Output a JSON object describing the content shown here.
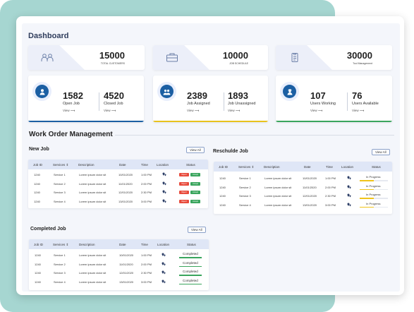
{
  "dashboard": {
    "title": "Dashboard"
  },
  "stats": [
    {
      "value": "15000",
      "label": "TOTAL CUSTOMERS",
      "icon": "users-icon"
    },
    {
      "value": "10000",
      "label": "JOB SCHEDULE",
      "icon": "briefcase-icon"
    },
    {
      "value": "30000",
      "label": "Tool Management",
      "icon": "clipboard-icon"
    }
  ],
  "metric_cards": [
    {
      "icon": "person-icon",
      "accent": "#1b5fa3",
      "left": {
        "value": "1582",
        "label": "Open Job",
        "view": "View ⟶"
      },
      "right": {
        "value": "4520",
        "label": "Closed Job",
        "view": "View ⟶"
      }
    },
    {
      "icon": "group-icon",
      "accent": "#e8c21d",
      "left": {
        "value": "2389",
        "label": "Job Assigned",
        "view": "View ⟶"
      },
      "right": {
        "value": "1893",
        "label": "Job Unassigned",
        "view": "View ⟶"
      }
    },
    {
      "icon": "worker-icon",
      "accent": "#3aa55d",
      "left": {
        "value": "107",
        "label": "Users Working",
        "view": "View ⟶"
      },
      "right": {
        "value": "76",
        "label": "Users Available",
        "view": "View ⟶"
      }
    }
  ],
  "work_order": {
    "title": "Work Order Management"
  },
  "new_job": {
    "title": "New Job",
    "view_all": "View All",
    "columns": [
      "Job ID",
      "Services ⇕",
      "Description",
      "Date",
      "Time",
      "Location",
      "Status"
    ],
    "rows": [
      {
        "id": "1240",
        "service": "Service 1",
        "desc": "Lorem ipsum dolor sit",
        "date": "10/01/2020",
        "time": "1:00 PM",
        "reject": "Reject",
        "accept": "Accept"
      },
      {
        "id": "1240",
        "service": "Service 2",
        "desc": "Lorem ipsum dolor sit",
        "date": "11/01/2020",
        "time": "2:00 PM",
        "reject": "Reject",
        "accept": "Accept"
      },
      {
        "id": "1240",
        "service": "Service 3",
        "desc": "Lorem ipsum dolor sit",
        "date": "12/01/2020",
        "time": "2:30 PM",
        "reject": "Reject",
        "accept": "Accept"
      },
      {
        "id": "1240",
        "service": "Service 4",
        "desc": "Lorem ipsum dolor sit",
        "date": "13/01/2020",
        "time": "3:00 PM",
        "reject": "Reject",
        "accept": "Accept"
      }
    ]
  },
  "reschedule_job": {
    "title": "Reschulde Job",
    "view_all": "View All",
    "columns": [
      "Job ID",
      "Services ⇕",
      "Description",
      "Date",
      "Time",
      "Location",
      "Status"
    ],
    "rows": [
      {
        "id": "1240",
        "service": "Service 1",
        "desc": "Lorem ipsum dolor sit",
        "date": "10/01/2020",
        "time": "1:00 PM",
        "status": "In Progress",
        "progress": 0.5
      },
      {
        "id": "1240",
        "service": "Service 2",
        "desc": "Lorem ipsum dolor sit",
        "date": "11/01/2020",
        "time": "2:00 PM",
        "status": "In Progress",
        "progress": 0.5
      },
      {
        "id": "1240",
        "service": "Service 3",
        "desc": "Lorem ipsum dolor sit",
        "date": "12/01/2020",
        "time": "2:30 PM",
        "status": "In Progress",
        "progress": 0.5
      },
      {
        "id": "1240",
        "service": "Service 4",
        "desc": "Lorem ipsum dolor sit",
        "date": "13/01/2020",
        "time": "3:00 PM",
        "status": "In Progress",
        "progress": 0.5
      }
    ]
  },
  "completed_job": {
    "title": "Completed Job",
    "view_all": "View All",
    "columns": [
      "Job ID",
      "Services ⇕",
      "Description",
      "Date",
      "Time",
      "Location",
      "Status"
    ],
    "rows": [
      {
        "id": "1240",
        "service": "Service 1",
        "desc": "Lorem ipsum dolor sit",
        "date": "10/01/2020",
        "time": "1:00 PM",
        "status": "Completed"
      },
      {
        "id": "1240",
        "service": "Service 2",
        "desc": "Lorem ipsum dolor sit",
        "date": "11/01/2020",
        "time": "2:00 PM",
        "status": "Completed"
      },
      {
        "id": "1240",
        "service": "Service 3",
        "desc": "Lorem ipsum dolor sit",
        "date": "12/01/2020",
        "time": "2:30 PM",
        "status": "Completed"
      },
      {
        "id": "1240",
        "service": "Service 4",
        "desc": "Lorem ipsum dolor sit",
        "date": "13/01/2020",
        "time": "3:00 PM",
        "status": "Completed"
      }
    ]
  },
  "colors": {
    "reject": "#e84b3c",
    "accept": "#3aa55d",
    "progress": "#f0c419",
    "header": "#dfe6f6"
  }
}
